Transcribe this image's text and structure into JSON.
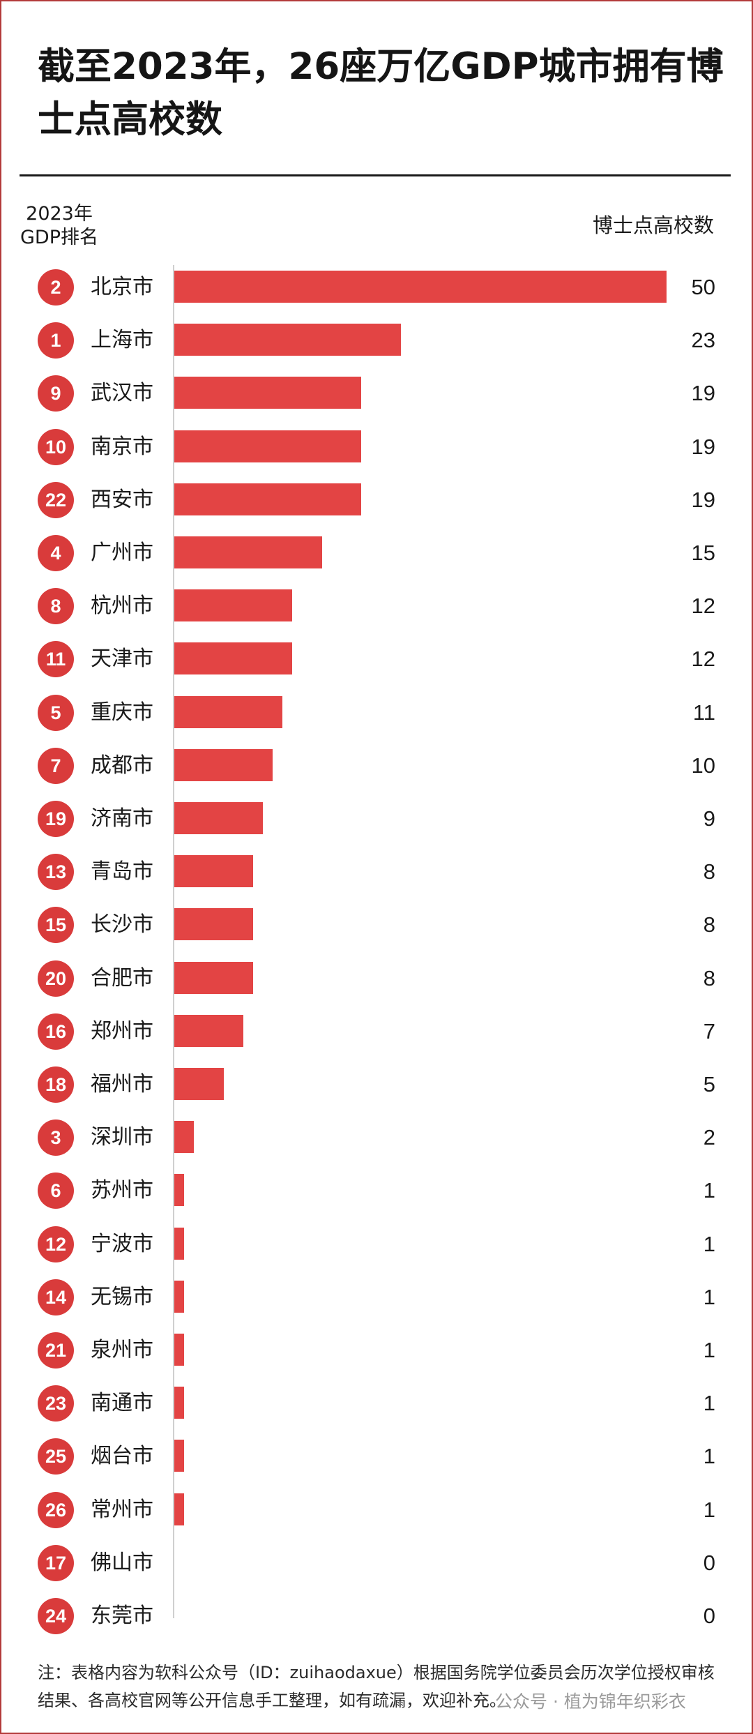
{
  "title": "截至2023年，26座万亿GDP城市拥有博士点高校数",
  "header": {
    "left_line1": "2023年",
    "left_line2": "GDP排名",
    "right": "博士点高校数"
  },
  "note": "注：表格内容为软科公众号（ID：zuihaodaxue）根据国务院学位委员会历次学位授权审核结果、各高校官网等公开信息手工整理，如有疏漏，欢迎补充。",
  "watermark_source": "公众号 · 植为锦年织彩衣",
  "colors": {
    "bar": "#e34444",
    "badge": "#d93b3b",
    "text": "#1a1a1a"
  },
  "chart_data": {
    "type": "bar",
    "orientation": "horizontal",
    "title": "截至2023年，26座万亿GDP城市拥有博士点高校数",
    "xlabel": "博士点高校数",
    "ylabel": "2023年 GDP排名",
    "xlim": [
      0,
      50
    ],
    "grid": false,
    "rows": [
      {
        "rank": "2",
        "city": "北京市",
        "value": 50
      },
      {
        "rank": "1",
        "city": "上海市",
        "value": 23
      },
      {
        "rank": "9",
        "city": "武汉市",
        "value": 19
      },
      {
        "rank": "10",
        "city": "南京市",
        "value": 19
      },
      {
        "rank": "22",
        "city": "西安市",
        "value": 19
      },
      {
        "rank": "4",
        "city": "广州市",
        "value": 15
      },
      {
        "rank": "8",
        "city": "杭州市",
        "value": 12
      },
      {
        "rank": "11",
        "city": "天津市",
        "value": 12
      },
      {
        "rank": "5",
        "city": "重庆市",
        "value": 11
      },
      {
        "rank": "7",
        "city": "成都市",
        "value": 10
      },
      {
        "rank": "19",
        "city": "济南市",
        "value": 9
      },
      {
        "rank": "13",
        "city": "青岛市",
        "value": 8
      },
      {
        "rank": "15",
        "city": "长沙市",
        "value": 8
      },
      {
        "rank": "20",
        "city": "合肥市",
        "value": 8
      },
      {
        "rank": "16",
        "city": "郑州市",
        "value": 7
      },
      {
        "rank": "18",
        "city": "福州市",
        "value": 5
      },
      {
        "rank": "3",
        "city": "深圳市",
        "value": 2
      },
      {
        "rank": "6",
        "city": "苏州市",
        "value": 1
      },
      {
        "rank": "12",
        "city": "宁波市",
        "value": 1
      },
      {
        "rank": "14",
        "city": "无锡市",
        "value": 1
      },
      {
        "rank": "21",
        "city": "泉州市",
        "value": 1
      },
      {
        "rank": "23",
        "city": "南通市",
        "value": 1
      },
      {
        "rank": "25",
        "city": "烟台市",
        "value": 1
      },
      {
        "rank": "26",
        "city": "常州市",
        "value": 1
      },
      {
        "rank": "17",
        "city": "佛山市",
        "value": 0
      },
      {
        "rank": "24",
        "city": "东莞市",
        "value": 0
      }
    ]
  }
}
